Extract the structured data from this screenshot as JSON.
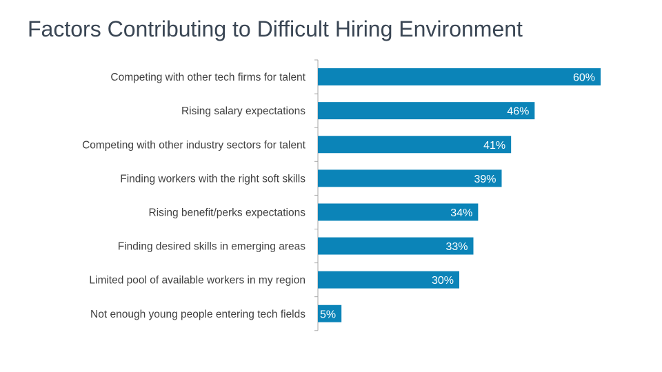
{
  "slide": {
    "title": "Factors Contributing to Difficult Hiring Environment"
  },
  "chart_data": {
    "type": "bar",
    "orientation": "horizontal",
    "title": "Factors Contributing to Difficult Hiring Environment",
    "categories": [
      "Competing with other tech firms for talent",
      "Rising salary expectations",
      "Competing with other industry sectors for talent",
      "Finding workers with the right soft skills",
      "Rising benefit/perks expectations",
      "Finding desired skills in emerging areas",
      "Limited pool of available workers in my region",
      "Not enough young people entering tech fields"
    ],
    "values": [
      60,
      46,
      41,
      39,
      34,
      33,
      30,
      5
    ],
    "value_labels": [
      "60%",
      "46%",
      "41%",
      "39%",
      "34%",
      "33%",
      "30%",
      "5%"
    ],
    "unit": "%",
    "xlim": [
      0,
      60
    ],
    "grid": false,
    "legend": "none",
    "bar_color": "#0b84b8",
    "label_color": "#ffffff"
  }
}
